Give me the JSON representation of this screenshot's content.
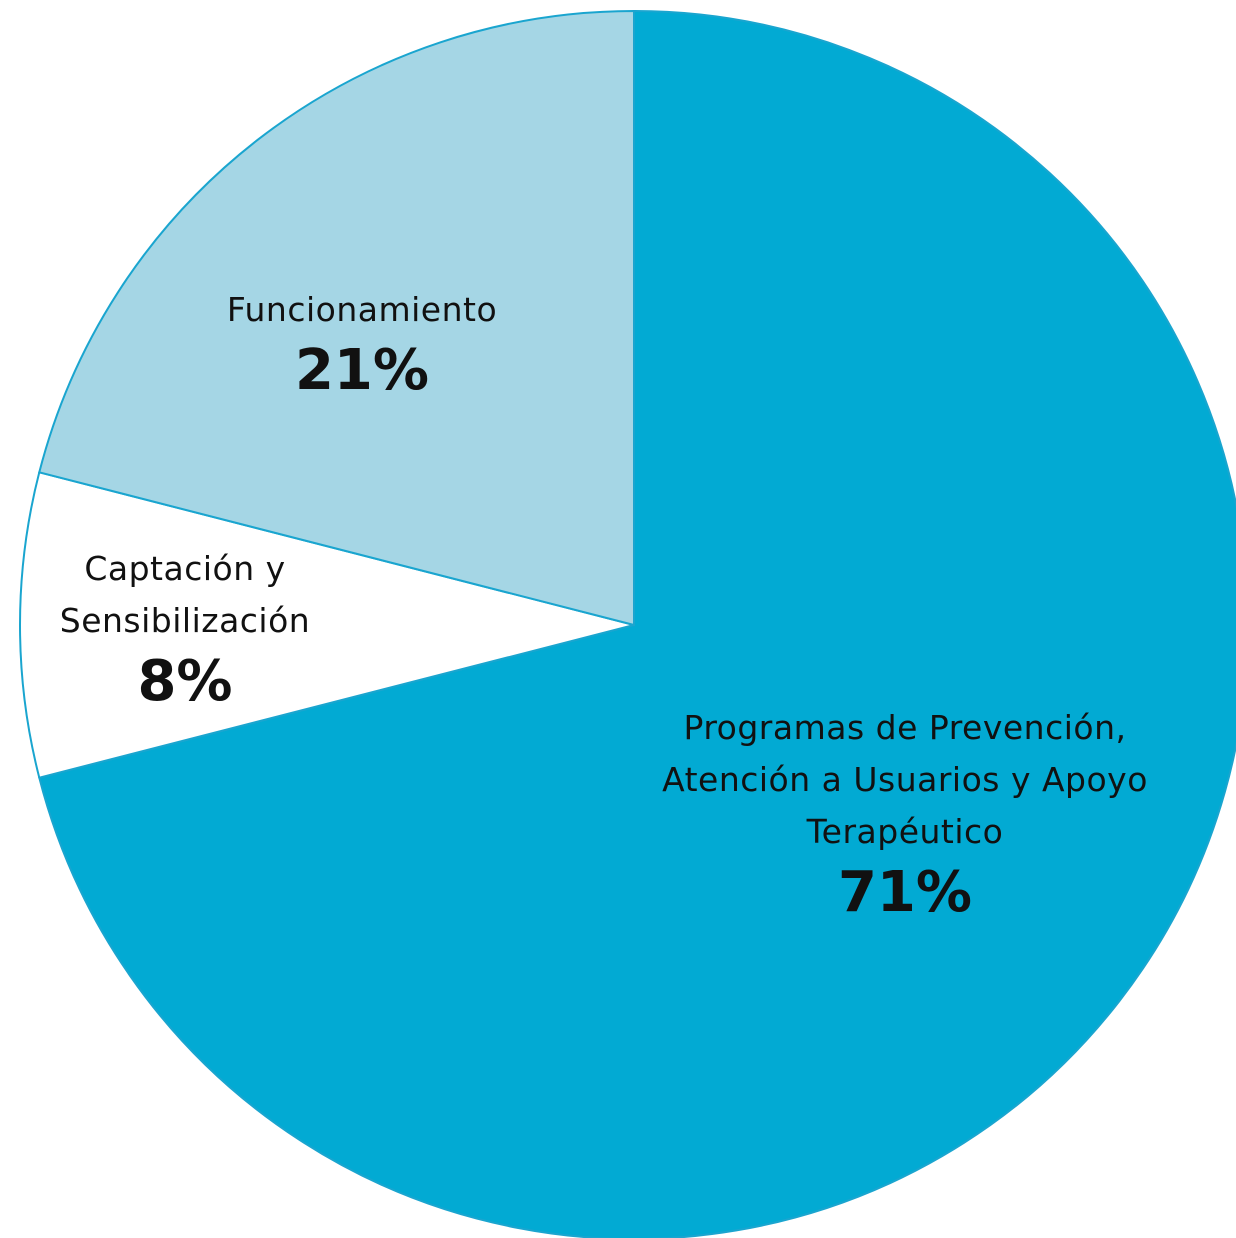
{
  "chart_data": {
    "type": "pie",
    "categories": [
      "Programas de Prevención, Atención a Usuarios y Apoyo Terapéutico",
      "Captación y Sensibilización",
      "Funcionamiento"
    ],
    "values": [
      71,
      8,
      21
    ],
    "value_labels": [
      "71%",
      "8%",
      "21%"
    ],
    "colors": [
      "#02aad3",
      "#ffffff",
      "#a5d6e5"
    ]
  }
}
